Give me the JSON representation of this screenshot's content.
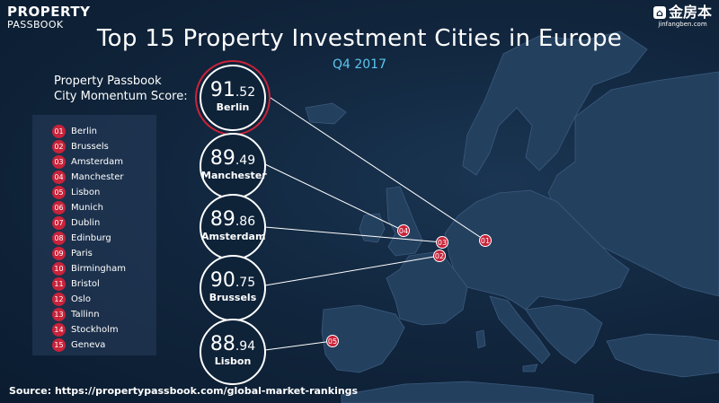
{
  "branding": {
    "logo_line1": "PROPERTY",
    "logo_line2": "PASSBOOK",
    "partner_name": "金房本",
    "partner_url": "jinfangben.com"
  },
  "header": {
    "title": "Top 15 Property Investment Cities in Europe",
    "subtitle": "Q4 2017",
    "score_label_line1": "Property Passbook",
    "score_label_line2": "City Momentum Score:"
  },
  "colors": {
    "background": "#0e2238",
    "land": "#24405f",
    "accent_red": "#c8233a",
    "subtitle_blue": "#5cc7ee"
  },
  "chart_data": {
    "type": "table",
    "title": "Top 15 Property Investment Cities in Europe",
    "subtitle": "Q4 2017",
    "ranking": [
      {
        "rank": "01",
        "city": "Berlin"
      },
      {
        "rank": "02",
        "city": "Brussels"
      },
      {
        "rank": "03",
        "city": "Amsterdam"
      },
      {
        "rank": "04",
        "city": "Manchester"
      },
      {
        "rank": "05",
        "city": "Lisbon"
      },
      {
        "rank": "06",
        "city": "Munich"
      },
      {
        "rank": "07",
        "city": "Dublin"
      },
      {
        "rank": "08",
        "city": "Edinburg"
      },
      {
        "rank": "09",
        "city": "Paris"
      },
      {
        "rank": "10",
        "city": "Birmingham"
      },
      {
        "rank": "11",
        "city": "Bristol"
      },
      {
        "rank": "12",
        "city": "Oslo"
      },
      {
        "rank": "13",
        "city": "Tallinn"
      },
      {
        "rank": "14",
        "city": "Stockholm"
      },
      {
        "rank": "15",
        "city": "Geneva"
      }
    ],
    "scores": [
      {
        "city": "Berlin",
        "rank": "01",
        "whole": "91",
        "decimal": ".52",
        "value": 91.52,
        "highlight": true
      },
      {
        "city": "Manchester",
        "rank": "04",
        "whole": "89",
        "decimal": ".49",
        "value": 89.49,
        "highlight": false
      },
      {
        "city": "Amsterdam",
        "rank": "03",
        "whole": "89",
        "decimal": ".86",
        "value": 89.86,
        "highlight": false
      },
      {
        "city": "Brussels",
        "rank": "02",
        "whole": "90",
        "decimal": ".75",
        "value": 90.75,
        "highlight": false
      },
      {
        "city": "Lisbon",
        "rank": "05",
        "whole": "88",
        "decimal": ".94",
        "value": 88.94,
        "highlight": false
      }
    ]
  },
  "source": "Source: https://propertypassbook.com/global-market-rankings"
}
